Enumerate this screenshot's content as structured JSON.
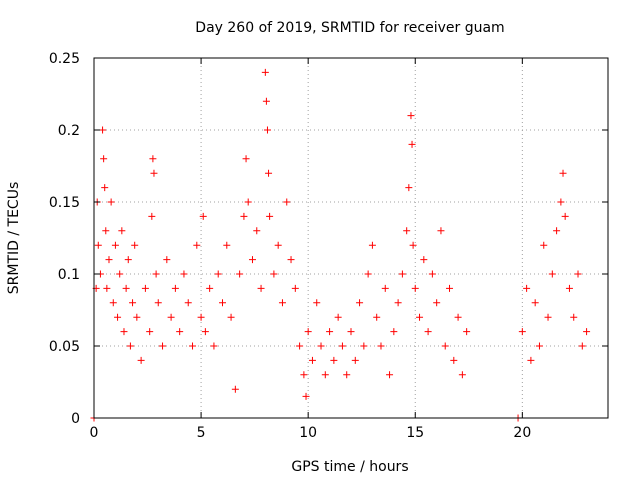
{
  "chart_data": {
    "type": "scatter",
    "title": "Day 260 of 2019, SRMTID for receiver guam",
    "xlabel": "GPS time / hours",
    "ylabel": "SRMTID / TECUs",
    "xlim": [
      0,
      24
    ],
    "ylim": [
      0,
      0.25
    ],
    "x_ticks": [
      0,
      5,
      10,
      15,
      20
    ],
    "x_tick_labels": [
      "0",
      "5",
      "10",
      "15",
      "20"
    ],
    "y_ticks": [
      0,
      0.05,
      0.1,
      0.15,
      0.2,
      0.25
    ],
    "y_tick_labels": [
      "0",
      "0.05",
      "0.1",
      "0.15",
      "0.2",
      "0.25"
    ],
    "grid": true,
    "marker": "plus",
    "series": [
      {
        "name": "SRMTID",
        "color": "#ff0000",
        "points": [
          [
            0.0,
            0.0
          ],
          [
            0.1,
            0.09
          ],
          [
            0.15,
            0.15
          ],
          [
            0.2,
            0.12
          ],
          [
            0.3,
            0.1
          ],
          [
            0.4,
            0.2
          ],
          [
            0.45,
            0.18
          ],
          [
            0.5,
            0.16
          ],
          [
            0.55,
            0.13
          ],
          [
            0.6,
            0.09
          ],
          [
            0.7,
            0.11
          ],
          [
            0.8,
            0.15
          ],
          [
            0.9,
            0.08
          ],
          [
            1.0,
            0.12
          ],
          [
            1.1,
            0.07
          ],
          [
            1.2,
            0.1
          ],
          [
            1.3,
            0.13
          ],
          [
            1.4,
            0.06
          ],
          [
            1.5,
            0.09
          ],
          [
            1.6,
            0.11
          ],
          [
            1.7,
            0.05
          ],
          [
            1.8,
            0.08
          ],
          [
            1.9,
            0.12
          ],
          [
            2.0,
            0.07
          ],
          [
            2.2,
            0.04
          ],
          [
            2.4,
            0.09
          ],
          [
            2.6,
            0.06
          ],
          [
            2.7,
            0.14
          ],
          [
            2.75,
            0.18
          ],
          [
            2.8,
            0.17
          ],
          [
            2.9,
            0.1
          ],
          [
            3.0,
            0.08
          ],
          [
            3.2,
            0.05
          ],
          [
            3.4,
            0.11
          ],
          [
            3.6,
            0.07
          ],
          [
            3.8,
            0.09
          ],
          [
            4.0,
            0.06
          ],
          [
            4.2,
            0.1
          ],
          [
            4.4,
            0.08
          ],
          [
            4.6,
            0.05
          ],
          [
            4.8,
            0.12
          ],
          [
            5.0,
            0.07
          ],
          [
            5.1,
            0.14
          ],
          [
            5.2,
            0.06
          ],
          [
            5.4,
            0.09
          ],
          [
            5.6,
            0.05
          ],
          [
            5.8,
            0.1
          ],
          [
            6.0,
            0.08
          ],
          [
            6.2,
            0.12
          ],
          [
            6.4,
            0.07
          ],
          [
            6.6,
            0.02
          ],
          [
            6.8,
            0.1
          ],
          [
            7.0,
            0.14
          ],
          [
            7.1,
            0.18
          ],
          [
            7.2,
            0.15
          ],
          [
            7.4,
            0.11
          ],
          [
            7.6,
            0.13
          ],
          [
            7.8,
            0.09
          ],
          [
            8.0,
            0.24
          ],
          [
            8.05,
            0.22
          ],
          [
            8.1,
            0.2
          ],
          [
            8.15,
            0.17
          ],
          [
            8.2,
            0.14
          ],
          [
            8.4,
            0.1
          ],
          [
            8.6,
            0.12
          ],
          [
            8.8,
            0.08
          ],
          [
            9.0,
            0.15
          ],
          [
            9.2,
            0.11
          ],
          [
            9.4,
            0.09
          ],
          [
            9.6,
            0.05
          ],
          [
            9.8,
            0.03
          ],
          [
            9.9,
            0.015
          ],
          [
            10.0,
            0.06
          ],
          [
            10.2,
            0.04
          ],
          [
            10.4,
            0.08
          ],
          [
            10.6,
            0.05
          ],
          [
            10.8,
            0.03
          ],
          [
            11.0,
            0.06
          ],
          [
            11.2,
            0.04
          ],
          [
            11.4,
            0.07
          ],
          [
            11.6,
            0.05
          ],
          [
            11.8,
            0.03
          ],
          [
            12.0,
            0.06
          ],
          [
            12.2,
            0.04
          ],
          [
            12.4,
            0.08
          ],
          [
            12.6,
            0.05
          ],
          [
            12.8,
            0.1
          ],
          [
            13.0,
            0.12
          ],
          [
            13.2,
            0.07
          ],
          [
            13.4,
            0.05
          ],
          [
            13.6,
            0.09
          ],
          [
            13.8,
            0.03
          ],
          [
            14.0,
            0.06
          ],
          [
            14.2,
            0.08
          ],
          [
            14.4,
            0.1
          ],
          [
            14.6,
            0.13
          ],
          [
            14.7,
            0.16
          ],
          [
            14.8,
            0.21
          ],
          [
            14.85,
            0.19
          ],
          [
            14.9,
            0.12
          ],
          [
            15.0,
            0.09
          ],
          [
            15.2,
            0.07
          ],
          [
            15.4,
            0.11
          ],
          [
            15.6,
            0.06
          ],
          [
            15.8,
            0.1
          ],
          [
            16.0,
            0.08
          ],
          [
            16.2,
            0.13
          ],
          [
            16.4,
            0.05
          ],
          [
            16.6,
            0.09
          ],
          [
            16.8,
            0.04
          ],
          [
            17.0,
            0.07
          ],
          [
            17.2,
            0.03
          ],
          [
            17.4,
            0.06
          ],
          [
            19.8,
            0.0
          ],
          [
            20.0,
            0.06
          ],
          [
            20.2,
            0.09
          ],
          [
            20.4,
            0.04
          ],
          [
            20.6,
            0.08
          ],
          [
            20.8,
            0.05
          ],
          [
            21.0,
            0.12
          ],
          [
            21.2,
            0.07
          ],
          [
            21.4,
            0.1
          ],
          [
            21.6,
            0.13
          ],
          [
            21.8,
            0.15
          ],
          [
            21.9,
            0.17
          ],
          [
            22.0,
            0.14
          ],
          [
            22.2,
            0.09
          ],
          [
            22.4,
            0.07
          ],
          [
            22.6,
            0.1
          ],
          [
            22.8,
            0.05
          ],
          [
            23.0,
            0.06
          ]
        ]
      }
    ]
  }
}
